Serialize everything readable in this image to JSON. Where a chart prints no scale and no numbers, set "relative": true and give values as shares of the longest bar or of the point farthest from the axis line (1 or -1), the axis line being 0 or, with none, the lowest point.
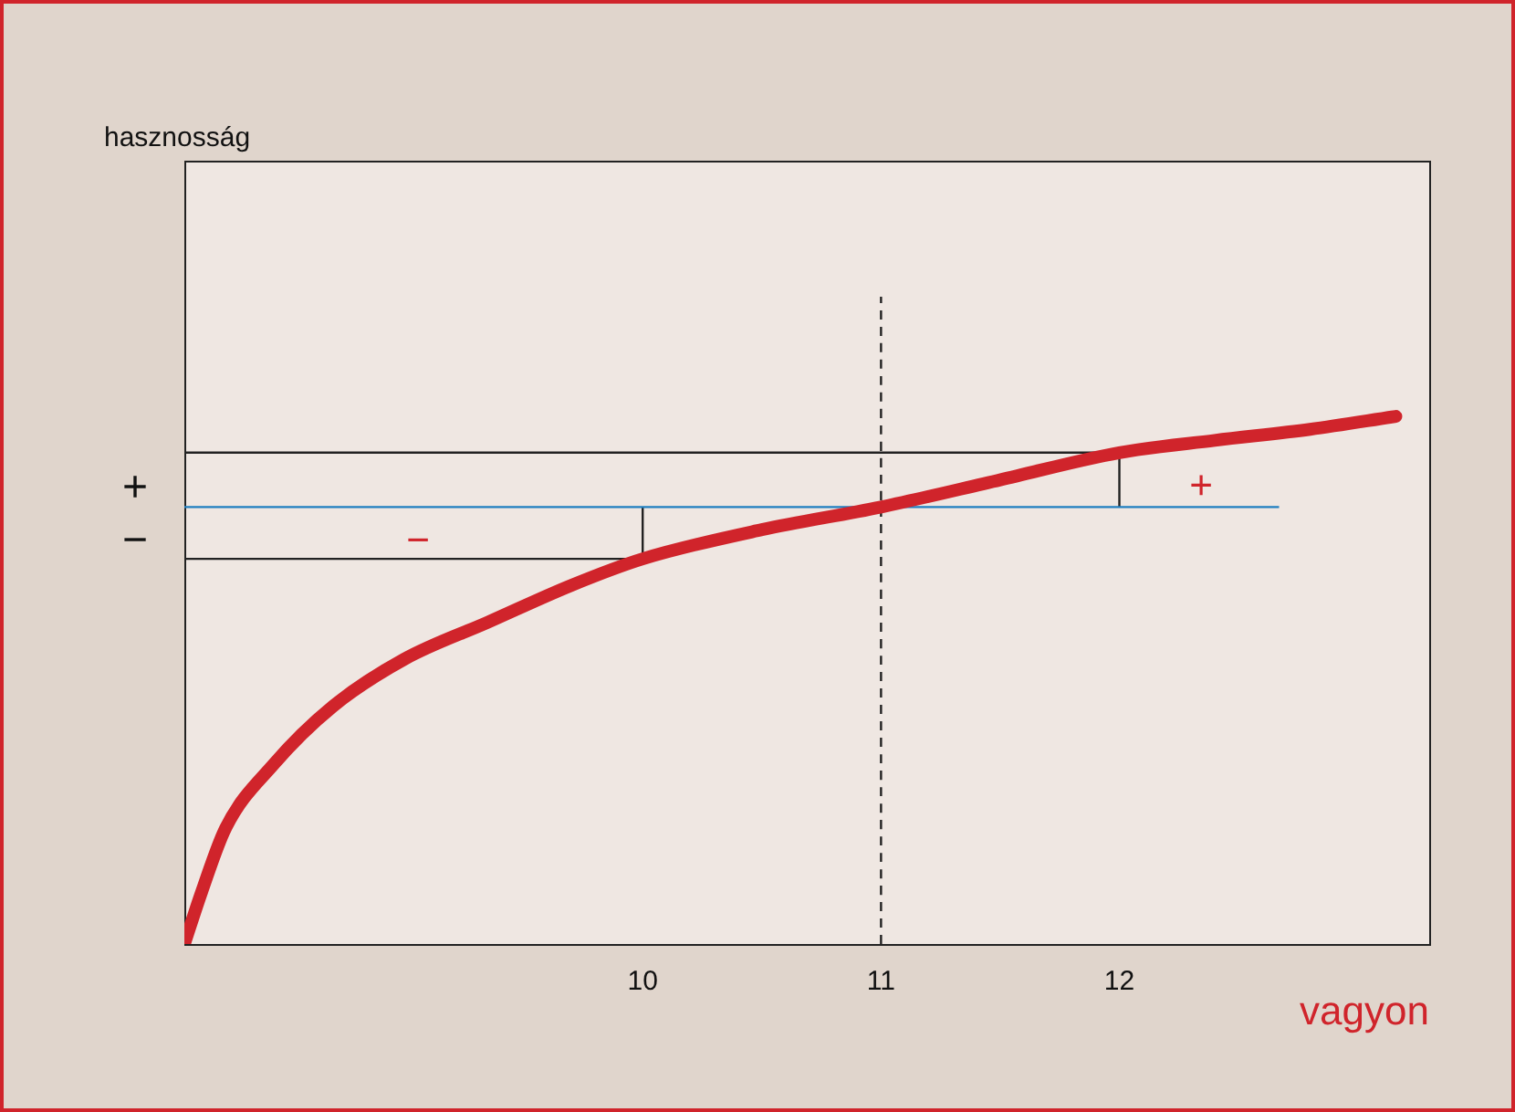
{
  "chart_data": {
    "type": "line",
    "xlabel": "vagyon",
    "relative": true,
    "xlim": [
      8.077,
      13.3
    ],
    "xticks": [
      10,
      11,
      12
    ],
    "tick_labels": "x",
    "grid": false,
    "legend": false,
    "marker": "none",
    "series": [
      {
        "color": "#d0242b",
        "x": [
          8.077,
          8.15,
          8.25,
          8.45,
          8.7,
          9.0,
          9.35,
          9.7,
          10,
          10.5,
          11,
          11.5,
          12,
          12.4,
          12.8,
          13.16
        ],
        "values": [
          0,
          0.081,
          0.179,
          0.277,
          0.367,
          0.44,
          0.497,
          0.554,
          0.595,
          0.64,
          0.675,
          0.717,
          0.759,
          0.778,
          0.795,
          0.815
        ]
      },
      {
        "color": "#1f7fc0",
        "x": [
          8.077,
          12.67
        ],
        "values": [
          0.675,
          0.675
        ]
      },
      {
        "color": "#222222",
        "x": [
          8.077,
          12,
          12
        ],
        "values": [
          0.759,
          0.759,
          0.675
        ]
      },
      {
        "color": "#222222",
        "x": [
          8.077,
          10,
          10
        ],
        "values": [
          0.595,
          0.595,
          0.675
        ]
      },
      {
        "color": "#222222",
        "line_style": "dashed",
        "x": [
          11,
          11
        ],
        "values": [
          0,
          1
        ]
      }
    ],
    "annotations": [
      "hasznosság",
      "+",
      "−",
      "−",
      "+"
    ]
  }
}
